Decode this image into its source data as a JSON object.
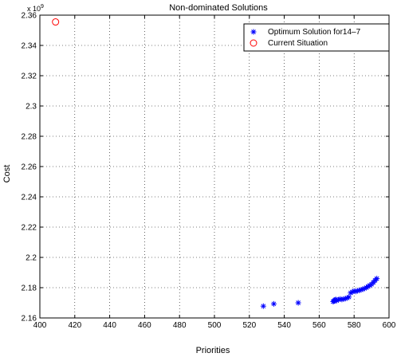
{
  "chart_data": {
    "type": "scatter",
    "title": "Non-dominated Solutions",
    "xlabel": "Priorities",
    "ylabel": "Cost",
    "y_exponent_label": "x 10",
    "y_exponent_power": "9",
    "xlim": [
      400,
      600
    ],
    "ylim": [
      2.16,
      2.36
    ],
    "x_ticks": [
      400,
      420,
      440,
      460,
      480,
      500,
      520,
      540,
      560,
      580,
      600
    ],
    "y_ticks": [
      2.16,
      2.18,
      2.2,
      2.22,
      2.24,
      2.26,
      2.28,
      2.3,
      2.32,
      2.34,
      2.36
    ],
    "grid": true,
    "grid_style": "dotted",
    "legend_position": "top-right",
    "series": [
      {
        "name": "Optimum Solution for14–7",
        "marker": "asterisk",
        "color": "#0000ff",
        "points": [
          [
            528,
            2.1678
          ],
          [
            534,
            2.1693
          ],
          [
            548,
            2.17
          ],
          [
            568,
            2.1708
          ],
          [
            568.5,
            2.1712
          ],
          [
            569,
            2.1718
          ],
          [
            569.5,
            2.1722
          ],
          [
            570,
            2.1715
          ],
          [
            571,
            2.172
          ],
          [
            572,
            2.1725
          ],
          [
            573,
            2.1722
          ],
          [
            574,
            2.1725
          ],
          [
            575,
            2.1728
          ],
          [
            576,
            2.1732
          ],
          [
            577,
            2.1738
          ],
          [
            578,
            2.1765
          ],
          [
            579,
            2.1772
          ],
          [
            580,
            2.1778
          ],
          [
            581,
            2.1775
          ],
          [
            582,
            2.178
          ],
          [
            583,
            2.1782
          ],
          [
            584,
            2.1786
          ],
          [
            585,
            2.179
          ],
          [
            586,
            2.1795
          ],
          [
            587,
            2.18
          ],
          [
            588,
            2.1808
          ],
          [
            589,
            2.1815
          ],
          [
            590,
            2.1822
          ],
          [
            591,
            2.1835
          ],
          [
            592,
            2.1848
          ],
          [
            593,
            2.186
          ]
        ]
      },
      {
        "name": "Current Situation",
        "marker": "circle",
        "color": "#ff0000",
        "points": [
          [
            409,
            2.3555
          ]
        ]
      }
    ]
  }
}
